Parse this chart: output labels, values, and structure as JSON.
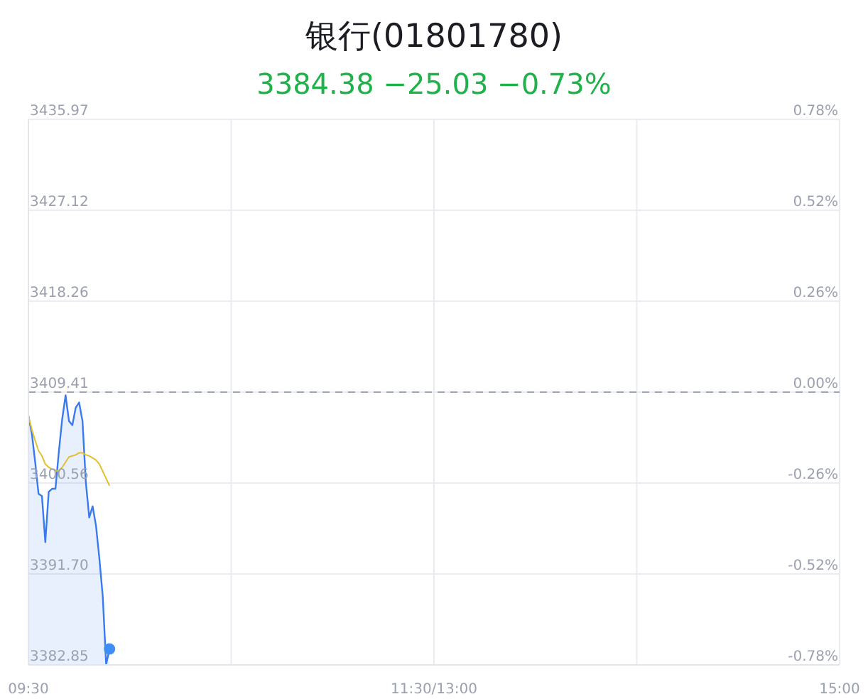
{
  "chart_data": {
    "type": "area",
    "title": "银行(01801780)",
    "subtitle": "3384.38 −25.03 −0.73%",
    "categories": [
      "09:30",
      null,
      null,
      null,
      null,
      null,
      null,
      null,
      null,
      null,
      null,
      null,
      null,
      null,
      null,
      null,
      null,
      null,
      null,
      null,
      null,
      null,
      null,
      null,
      null,
      null,
      null,
      null,
      null,
      null,
      null,
      null,
      null,
      null,
      null,
      null,
      null,
      null,
      null,
      null,
      null,
      null,
      null,
      null,
      null,
      null,
      null,
      null,
      null,
      null,
      null,
      null,
      null,
      null,
      null,
      null,
      null,
      null,
      null,
      null,
      null,
      null,
      null,
      null,
      null,
      null,
      null,
      null,
      null,
      null,
      null,
      null,
      null,
      null,
      null,
      null,
      null,
      null,
      null,
      null,
      null,
      null,
      null,
      null,
      null,
      null,
      null,
      null,
      null,
      null,
      null,
      null,
      null,
      null,
      null,
      null,
      null,
      null,
      null,
      null,
      null,
      null,
      null,
      null,
      null,
      null,
      null,
      null,
      null,
      null,
      null,
      null,
      null,
      null,
      null,
      null,
      null,
      null,
      null,
      null,
      "11:30/13:00",
      null,
      null,
      null,
      null,
      null,
      null,
      null,
      null,
      null,
      null,
      null,
      null,
      null,
      null,
      null,
      null,
      null,
      null,
      null,
      null,
      null,
      null,
      null,
      null,
      null,
      null,
      null,
      null,
      null,
      null,
      null,
      null,
      null,
      null,
      null,
      null,
      null,
      null,
      null,
      null,
      null,
      null,
      null,
      null,
      null,
      null,
      null,
      null,
      null,
      null,
      null,
      null,
      null,
      null,
      null,
      null,
      null,
      null,
      null,
      null,
      null,
      null,
      null,
      null,
      null,
      null,
      null,
      null,
      null,
      null,
      null,
      null,
      null,
      null,
      null,
      null,
      null,
      null,
      null,
      null,
      null,
      null,
      null,
      null,
      null,
      null,
      null,
      null,
      null,
      null,
      null,
      null,
      null,
      null,
      null,
      null,
      null,
      null,
      null,
      null,
      null,
      null,
      null,
      null,
      null,
      null,
      null,
      null,
      null,
      null,
      null,
      null,
      null,
      null,
      null,
      null,
      null,
      null,
      null,
      "15:00"
    ],
    "ylim": [
      3382.85,
      3435.97
    ],
    "yticks": [
      3382.85,
      {
        "value": 3391.7,
        "label": "3391.70"
      },
      3400.56,
      3409.41,
      3418.26,
      3427.12,
      3435.97
    ],
    "y2lim": [
      -0.78,
      0.78
    ],
    "y2ticks": [
      {
        "value": -0.78,
        "label": "-0.78%"
      },
      {
        "value": -0.52,
        "label": "-0.52%"
      },
      {
        "value": -0.26,
        "label": "-0.26%"
      },
      {
        "value": 0,
        "label": "0.00%"
      },
      {
        "value": 0.26,
        "label": "0.26%"
      },
      {
        "value": 0.52,
        "label": "0.52%"
      },
      {
        "value": 0.78,
        "label": "0.78%"
      }
    ],
    "grid": true,
    "marker": "none",
    "ref_lines": [
      {
        "axis": "y",
        "value": 3409.41,
        "color": "#9aa3b8",
        "line_style": "dashed"
      }
    ],
    "series": [
      {
        "color": "#3a7af0",
        "values": [
          3407.1,
          3405.4,
          3402.6,
          3399.5,
          3399.3,
          3394.8,
          3399.7,
          3400.0,
          3400.0,
          3403.6,
          3406.8,
          3409.1,
          3406.6,
          3406.2,
          3407.9,
          3408.4,
          3406.6,
          3400.6,
          3397.2,
          3398.3,
          3396.4,
          3393.2,
          3389.5,
          3382.9,
          3384.4,
          null,
          null,
          null,
          null,
          null,
          null,
          null,
          null,
          null,
          null,
          null,
          null,
          null,
          null,
          null,
          null,
          null,
          null,
          null,
          null,
          null,
          null,
          null,
          null,
          null,
          null,
          null,
          null,
          null,
          null,
          null,
          null,
          null,
          null,
          null,
          null,
          null,
          null,
          null,
          null,
          null,
          null,
          null,
          null,
          null,
          null,
          null,
          null,
          null,
          null,
          null,
          null,
          null,
          null,
          null,
          null,
          null,
          null,
          null,
          null,
          null,
          null,
          null,
          null,
          null,
          null,
          null,
          null,
          null,
          null,
          null,
          null,
          null,
          null,
          null,
          null,
          null,
          null,
          null,
          null,
          null,
          null,
          null,
          null,
          null,
          null,
          null,
          null,
          null,
          null,
          null,
          null,
          null,
          null,
          null,
          null,
          null,
          null,
          null,
          null,
          null,
          null,
          null,
          null,
          null,
          null,
          null,
          null,
          null,
          null,
          null,
          null,
          null,
          null,
          null,
          null,
          null,
          null,
          null,
          null,
          null,
          null,
          null,
          null,
          null,
          null,
          null,
          null,
          null,
          null,
          null,
          null,
          null,
          null,
          null,
          null,
          null,
          null,
          null,
          null,
          null,
          null,
          null,
          null,
          null,
          null,
          null,
          null,
          null,
          null,
          null,
          null,
          null,
          null,
          null,
          null,
          null,
          null,
          null,
          null,
          null,
          null,
          null,
          null,
          null,
          null,
          null,
          null,
          null,
          null,
          null,
          null,
          null,
          null,
          null,
          null,
          null,
          null,
          null,
          null,
          null,
          null,
          null,
          null,
          null,
          null,
          null,
          null,
          null,
          null,
          null,
          null,
          null,
          null,
          null,
          null,
          null,
          null,
          null,
          null,
          null,
          null,
          null,
          null,
          null,
          null,
          null,
          null,
          null,
          null,
          null,
          null,
          null,
          null,
          null,
          null
        ]
      },
      {
        "type": "line",
        "color": "#e2bf2e",
        "values": [
          3407.1,
          3405.8,
          3404.7,
          3403.7,
          3403.2,
          3402.4,
          3402.1,
          3401.9,
          3401.8,
          3401.7,
          3402.1,
          3402.6,
          3403.1,
          3403.2,
          3403.3,
          3403.5,
          3403.5,
          3403.3,
          3403.2,
          3403.0,
          3402.8,
          3402.4,
          3401.7,
          3401.0,
          3400.3,
          null,
          null,
          null,
          null,
          null,
          null,
          null,
          null,
          null,
          null,
          null,
          null,
          null,
          null,
          null,
          null,
          null,
          null,
          null,
          null,
          null,
          null,
          null,
          null,
          null,
          null,
          null,
          null,
          null,
          null,
          null,
          null,
          null,
          null,
          null,
          null,
          null,
          null,
          null,
          null,
          null,
          null,
          null,
          null,
          null,
          null,
          null,
          null,
          null,
          null,
          null,
          null,
          null,
          null,
          null,
          null,
          null,
          null,
          null,
          null,
          null,
          null,
          null,
          null,
          null,
          null,
          null,
          null,
          null,
          null,
          null,
          null,
          null,
          null,
          null,
          null,
          null,
          null,
          null,
          null,
          null,
          null,
          null,
          null,
          null,
          null,
          null,
          null,
          null,
          null,
          null,
          null,
          null,
          null,
          null,
          null,
          null,
          null,
          null,
          null,
          null,
          null,
          null,
          null,
          null,
          null,
          null,
          null,
          null,
          null,
          null,
          null,
          null,
          null,
          null,
          null,
          null,
          null,
          null,
          null,
          null,
          null,
          null,
          null,
          null,
          null,
          null,
          null,
          null,
          null,
          null,
          null,
          null,
          null,
          null,
          null,
          null,
          null,
          null,
          null,
          null,
          null,
          null,
          null,
          null,
          null,
          null,
          null,
          null,
          null,
          null,
          null,
          null,
          null,
          null,
          null,
          null,
          null,
          null,
          null,
          null,
          null,
          null,
          null,
          null,
          null,
          null,
          null,
          null,
          null,
          null,
          null,
          null,
          null,
          null,
          null,
          null,
          null,
          null,
          null,
          null,
          null,
          null,
          null,
          null,
          null,
          null,
          null,
          null,
          null,
          null,
          null,
          null,
          null,
          null,
          null,
          null,
          null,
          null,
          null,
          null,
          null,
          null,
          null,
          null,
          null,
          null,
          null,
          null,
          null,
          null,
          null,
          null,
          null,
          null,
          null
        ]
      },
      {
        "type": "scatter",
        "color": "#3d8ef7",
        "marker": "circle",
        "values": [
          null,
          null,
          null,
          null,
          null,
          null,
          null,
          null,
          null,
          null,
          null,
          null,
          null,
          null,
          null,
          null,
          null,
          null,
          null,
          null,
          null,
          null,
          null,
          null,
          3384.4,
          null,
          null,
          null,
          null,
          null,
          null,
          null,
          null,
          null,
          null,
          null,
          null,
          null,
          null,
          null,
          null,
          null,
          null,
          null,
          null,
          null,
          null,
          null,
          null,
          null,
          null,
          null,
          null,
          null,
          null,
          null,
          null,
          null,
          null,
          null,
          null,
          null,
          null,
          null,
          null,
          null,
          null,
          null,
          null,
          null,
          null,
          null,
          null,
          null,
          null,
          null,
          null,
          null,
          null,
          null,
          null,
          null,
          null,
          null,
          null,
          null,
          null,
          null,
          null,
          null,
          null,
          null,
          null,
          null,
          null,
          null,
          null,
          null,
          null,
          null,
          null,
          null,
          null,
          null,
          null,
          null,
          null,
          null,
          null,
          null,
          null,
          null,
          null,
          null,
          null,
          null,
          null,
          null,
          null,
          null,
          null,
          null,
          null,
          null,
          null,
          null,
          null,
          null,
          null,
          null,
          null,
          null,
          null,
          null,
          null,
          null,
          null,
          null,
          null,
          null,
          null,
          null,
          null,
          null,
          null,
          null,
          null,
          null,
          null,
          null,
          null,
          null,
          null,
          null,
          null,
          null,
          null,
          null,
          null,
          null,
          null,
          null,
          null,
          null,
          null,
          null,
          null,
          null,
          null,
          null,
          null,
          null,
          null,
          null,
          null,
          null,
          null,
          null,
          null,
          null,
          null,
          null,
          null,
          null,
          null,
          null,
          null,
          null,
          null,
          null,
          null,
          null,
          null,
          null,
          null,
          null,
          null,
          null,
          null,
          null,
          null,
          null,
          null,
          null,
          null,
          null,
          null,
          null,
          null,
          null,
          null,
          null,
          null,
          null,
          null,
          null,
          null,
          null,
          null,
          null,
          null,
          null,
          null,
          null,
          null,
          null,
          null,
          null,
          null,
          null,
          null,
          null,
          null,
          null,
          null,
          null,
          null,
          null,
          null,
          null,
          null
        ]
      }
    ]
  }
}
